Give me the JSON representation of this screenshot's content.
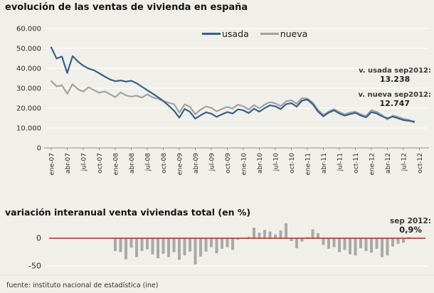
{
  "page": {
    "title": "evolución de las ventas de vivienda en españa",
    "section2_title": "variación interanual venta viviendas total (en %)",
    "footer": "fuente: instituto nacional de estadística (ine)",
    "background": "#f0efe9"
  },
  "legend": {
    "usada": "usada",
    "nueva": "nueva"
  },
  "annotations": {
    "usada": {
      "label": "v. usada sep2012:",
      "value": "13.238"
    },
    "nueva": {
      "label": "v. nueva sep2012:",
      "value": "12.747"
    },
    "variacion": {
      "label": "sep 2012:",
      "value": "0,9%"
    }
  },
  "colors": {
    "usada_line": "#35608c",
    "nueva_line": "#a2a2a0",
    "bar": "#a9a9a7",
    "zero_line": "#d11a1a",
    "gridline": "#fbfbf7",
    "axis": "#8f8f8f"
  },
  "chart_data": [
    {
      "type": "line",
      "title": "evolución de las ventas de vivienda en españa",
      "x_start": "ene-07",
      "x_end": "sep-12",
      "x_frequency": "monthly",
      "x_tick_labels": [
        "ene-07",
        "abr-07",
        "jul-07",
        "oct-07",
        "ene-08",
        "abr-08",
        "jul-08",
        "oct-08",
        "ene-09",
        "abr-09",
        "jul-09",
        "oct-09",
        "ene-10",
        "abr-10",
        "jul-10",
        "oct-10",
        "ene-11",
        "abr-11",
        "jul-11",
        "oct-11",
        "ene-12",
        "abr-12",
        "jul-12",
        "oct-12"
      ],
      "ylim": [
        0,
        60000
      ],
      "y_tick_labels": [
        "60.000",
        "50.000",
        "40.000",
        "30.000",
        "20.000",
        "10.000",
        "0"
      ],
      "y_tick_values": [
        60000,
        50000,
        40000,
        30000,
        20000,
        10000,
        0
      ],
      "legend_position": "top-center",
      "grid": "horizontal-white",
      "series": [
        {
          "name": "usada",
          "color": "#35608c",
          "last_point_label": "13.238",
          "values": [
            50500,
            44900,
            45900,
            37600,
            46100,
            43400,
            41300,
            39900,
            39000,
            37500,
            35900,
            34400,
            33500,
            33900,
            33300,
            33700,
            32500,
            30700,
            29000,
            27300,
            25500,
            23600,
            21200,
            18700,
            15200,
            19600,
            18100,
            14700,
            16400,
            17900,
            17200,
            15600,
            16900,
            18000,
            17300,
            19400,
            18900,
            17500,
            19700,
            18200,
            20000,
            21400,
            20900,
            19500,
            22000,
            22500,
            20700,
            23800,
            24300,
            22000,
            18300,
            15900,
            17700,
            18900,
            17300,
            16200,
            17000,
            17600,
            16300,
            15400,
            18000,
            17300,
            15900,
            14900,
            15700,
            14900,
            14000,
            13600,
            13238
          ]
        },
        {
          "name": "nueva",
          "color": "#a2a2a0",
          "last_point_label": "12.747",
          "values": [
            33600,
            30900,
            31500,
            27200,
            32000,
            29500,
            28300,
            30500,
            29000,
            27700,
            28400,
            27000,
            25500,
            27900,
            26400,
            25800,
            26200,
            25300,
            26900,
            25400,
            24700,
            23500,
            22700,
            22000,
            17800,
            21900,
            20600,
            16900,
            19300,
            20800,
            20100,
            18400,
            19600,
            20600,
            19800,
            21700,
            20900,
            19300,
            21500,
            19900,
            21800,
            23000,
            22400,
            21000,
            23400,
            23900,
            22100,
            25000,
            24800,
            22800,
            19100,
            16600,
            18300,
            19500,
            18000,
            16900,
            17700,
            18200,
            16900,
            16000,
            19000,
            18100,
            16500,
            14200,
            16300,
            15500,
            14600,
            14100,
            12747
          ]
        }
      ]
    },
    {
      "type": "bar",
      "title": "variación interanual venta viviendas total (en %)",
      "x_start": "ene-08",
      "x_end": "sep-12",
      "x_frequency": "monthly",
      "ylim": [
        -60,
        30
      ],
      "y_tick_labels": [
        "0",
        "-50"
      ],
      "y_tick_values": [
        0,
        -50
      ],
      "bar_color": "#a9a9a7",
      "zero_line_color": "#d11a1a",
      "last_point_label": "0,9%",
      "values": [
        -23,
        -25,
        -38,
        -17,
        -34,
        -23,
        -20,
        -29,
        -36,
        -28,
        -34,
        -25,
        -39,
        -31,
        -24,
        -47,
        -33,
        -24,
        -16,
        -27,
        -19,
        -16,
        -21,
        -3,
        -1,
        3,
        19,
        10,
        15,
        12,
        7,
        14,
        27,
        -5,
        -18,
        -6,
        2,
        16,
        9,
        -12,
        -19,
        -16,
        -25,
        -21,
        -29,
        -31,
        -18,
        -23,
        -26,
        -19,
        -34,
        -31,
        -15,
        -10,
        -8,
        2,
        0.9
      ]
    }
  ]
}
